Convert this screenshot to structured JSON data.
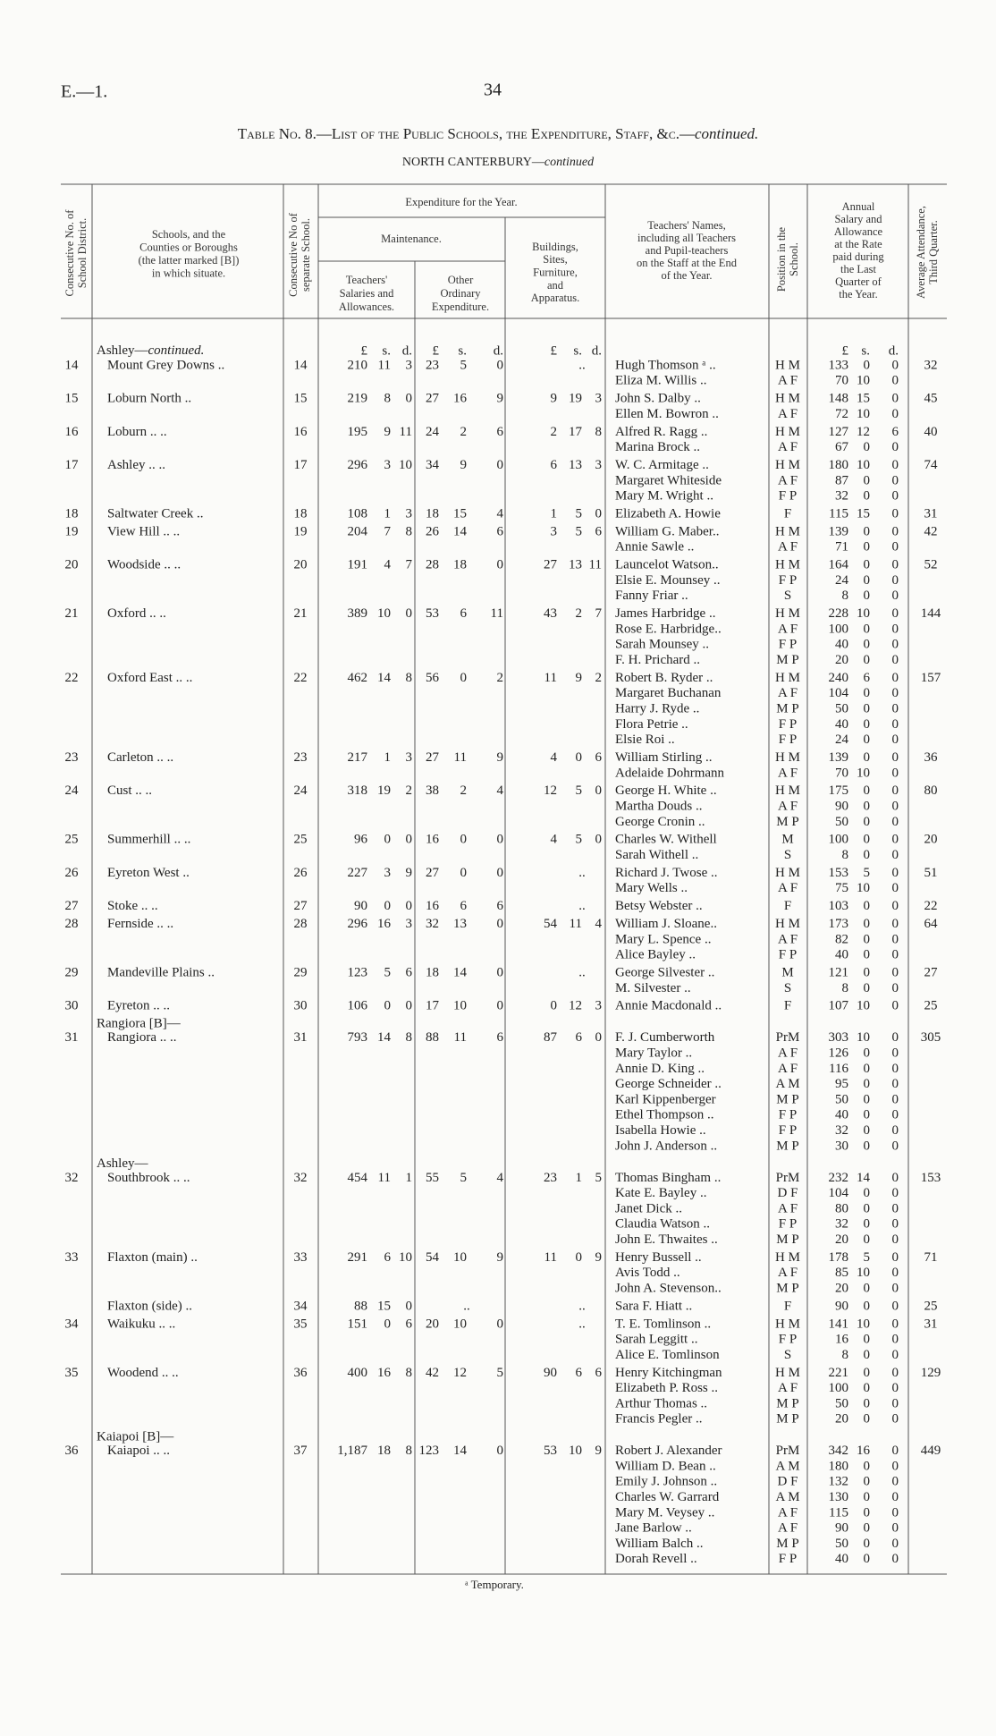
{
  "header": {
    "code": "E.—1.",
    "page": "34",
    "title": "Table No. 8.—List of the Public Schools, the Expenditure, Staff, &c.—",
    "title_italic": "continued.",
    "subtitle": "NORTH CANTERBURY—",
    "subtitle_italic": "continued"
  },
  "columns": {
    "district": [
      "Consecutive No. of",
      "School District."
    ],
    "school": [
      "Schools, and the",
      "Counties or Boroughs",
      "(the latter marked [B])",
      "in which situate."
    ],
    "school_no": [
      "Consecutive No of",
      "separate School."
    ],
    "expenditure": "Expenditure for the Year.",
    "maintenance": "Maintenance.",
    "salaries": [
      "Teachers'",
      "Salaries and",
      "Allowances."
    ],
    "other": [
      "Other",
      "Ordinary",
      "Expenditure."
    ],
    "buildings": [
      "Buildings,",
      "Sites,",
      "Furniture,",
      "and",
      "Apparatus."
    ],
    "teachers": [
      "Teachers' Names,",
      "including all Teachers",
      "and Pupil-teachers",
      "on the Staff at the End",
      "of the Year."
    ],
    "position": [
      "Position in the",
      "School."
    ],
    "salary": [
      "Annual",
      "Salary and",
      "Allowance",
      "at the Rate",
      "paid during",
      "the Last",
      "Quarter of",
      "the Year."
    ],
    "attendance": [
      "Average Attendance,",
      "Third Quarter."
    ]
  },
  "currency": [
    "£",
    "s.",
    "d."
  ],
  "schools": [
    {
      "prefix": "Ashley—",
      "prefix_italic": "continued.",
      "district": "14",
      "name": "Mount Grey Downs ..",
      "no": "14",
      "salaries": [
        "210",
        "11",
        "3"
      ],
      "other": [
        "23",
        "5",
        "0"
      ],
      "buildings": "..",
      "attendance": "32",
      "staff": [
        [
          "Hugh Thomson ᵃ ..",
          "H M",
          "133",
          "0",
          "0"
        ],
        [
          "Eliza M. Willis ..",
          "A F",
          "70",
          "10",
          "0"
        ]
      ]
    },
    {
      "district": "15",
      "name": "Loburn North ..",
      "no": "15",
      "salaries": [
        "219",
        "8",
        "0"
      ],
      "other": [
        "27",
        "16",
        "9"
      ],
      "buildings": [
        "9",
        "19",
        "3"
      ],
      "attendance": "45",
      "staff": [
        [
          "John S. Dalby ..",
          "H M",
          "148",
          "15",
          "0"
        ],
        [
          "Ellen M. Bowron ..",
          "A F",
          "72",
          "10",
          "0"
        ]
      ]
    },
    {
      "district": "16",
      "name": "Loburn .. ..",
      "no": "16",
      "salaries": [
        "195",
        "9",
        "11"
      ],
      "other": [
        "24",
        "2",
        "6"
      ],
      "buildings": [
        "2",
        "17",
        "8"
      ],
      "attendance": "40",
      "staff": [
        [
          "Alfred R. Ragg ..",
          "H M",
          "127",
          "12",
          "6"
        ],
        [
          "Marina Brock ..",
          "A F",
          "67",
          "0",
          "0"
        ]
      ]
    },
    {
      "district": "17",
      "name": "Ashley .. ..",
      "no": "17",
      "salaries": [
        "296",
        "3",
        "10"
      ],
      "other": [
        "34",
        "9",
        "0"
      ],
      "buildings": [
        "6",
        "13",
        "3"
      ],
      "attendance": "74",
      "staff": [
        [
          "W. C. Armitage ..",
          "H M",
          "180",
          "10",
          "0"
        ],
        [
          "Margaret Whiteside",
          "A F",
          "87",
          "0",
          "0"
        ],
        [
          "Mary M. Wright ..",
          "F P",
          "32",
          "0",
          "0"
        ]
      ]
    },
    {
      "district": "18",
      "name": "Saltwater Creek ..",
      "no": "18",
      "salaries": [
        "108",
        "1",
        "3"
      ],
      "other": [
        "18",
        "15",
        "4"
      ],
      "buildings": [
        "1",
        "5",
        "0"
      ],
      "attendance": "31",
      "staff": [
        [
          "Elizabeth A. Howie",
          "F",
          "115",
          "15",
          "0"
        ]
      ]
    },
    {
      "district": "19",
      "name": "View Hill .. ..",
      "no": "19",
      "salaries": [
        "204",
        "7",
        "8"
      ],
      "other": [
        "26",
        "14",
        "6"
      ],
      "buildings": [
        "3",
        "5",
        "6"
      ],
      "attendance": "42",
      "staff": [
        [
          "William G. Maber..",
          "H M",
          "139",
          "0",
          "0"
        ],
        [
          "Annie Sawle ..",
          "A F",
          "71",
          "0",
          "0"
        ]
      ]
    },
    {
      "district": "20",
      "name": "Woodside .. ..",
      "no": "20",
      "salaries": [
        "191",
        "4",
        "7"
      ],
      "other": [
        "28",
        "18",
        "0"
      ],
      "buildings": [
        "27",
        "13",
        "11"
      ],
      "attendance": "52",
      "staff": [
        [
          "Launcelot Watson..",
          "H M",
          "164",
          "0",
          "0"
        ],
        [
          "Elsie E. Mounsey ..",
          "F P",
          "24",
          "0",
          "0"
        ],
        [
          "Fanny Friar ..",
          "S",
          "8",
          "0",
          "0"
        ]
      ]
    },
    {
      "district": "21",
      "name": "Oxford .. ..",
      "no": "21",
      "salaries": [
        "389",
        "10",
        "0"
      ],
      "other": [
        "53",
        "6",
        "11"
      ],
      "buildings": [
        "43",
        "2",
        "7"
      ],
      "attendance": "144",
      "staff": [
        [
          "James Harbridge ..",
          "H M",
          "228",
          "10",
          "0"
        ],
        [
          "Rose E. Harbridge..",
          "A F",
          "100",
          "0",
          "0"
        ],
        [
          "Sarah Mounsey ..",
          "F P",
          "40",
          "0",
          "0"
        ],
        [
          "F. H. Prichard ..",
          "M P",
          "20",
          "0",
          "0"
        ]
      ]
    },
    {
      "district": "22",
      "name": "Oxford East .. ..",
      "no": "22",
      "salaries": [
        "462",
        "14",
        "8"
      ],
      "other": [
        "56",
        "0",
        "2"
      ],
      "buildings": [
        "11",
        "9",
        "2"
      ],
      "attendance": "157",
      "staff": [
        [
          "Robert B. Ryder ..",
          "H M",
          "240",
          "6",
          "0"
        ],
        [
          "Margaret Buchanan",
          "A F",
          "104",
          "0",
          "0"
        ],
        [
          "Harry J. Ryde ..",
          "M P",
          "50",
          "0",
          "0"
        ],
        [
          "Flora Petrie ..",
          "F P",
          "40",
          "0",
          "0"
        ],
        [
          "Elsie Roi ..",
          "F P",
          "24",
          "0",
          "0"
        ]
      ]
    },
    {
      "district": "23",
      "name": "Carleton .. ..",
      "no": "23",
      "salaries": [
        "217",
        "1",
        "3"
      ],
      "other": [
        "27",
        "11",
        "9"
      ],
      "buildings": [
        "4",
        "0",
        "6"
      ],
      "attendance": "36",
      "staff": [
        [
          "William Stirling ..",
          "H M",
          "139",
          "0",
          "0"
        ],
        [
          "Adelaide Dohrmann",
          "A F",
          "70",
          "10",
          "0"
        ]
      ]
    },
    {
      "district": "24",
      "name": "Cust .. ..",
      "no": "24",
      "salaries": [
        "318",
        "19",
        "2"
      ],
      "other": [
        "38",
        "2",
        "4"
      ],
      "buildings": [
        "12",
        "5",
        "0"
      ],
      "attendance": "80",
      "staff": [
        [
          "George H. White ..",
          "H M",
          "175",
          "0",
          "0"
        ],
        [
          "Martha Douds ..",
          "A F",
          "90",
          "0",
          "0"
        ],
        [
          "George Cronin ..",
          "M P",
          "50",
          "0",
          "0"
        ]
      ]
    },
    {
      "district": "25",
      "name": "Summerhill .. ..",
      "no": "25",
      "salaries": [
        "96",
        "0",
        "0"
      ],
      "other": [
        "16",
        "0",
        "0"
      ],
      "buildings": [
        "4",
        "5",
        "0"
      ],
      "attendance": "20",
      "staff": [
        [
          "Charles W. Withell",
          "M",
          "100",
          "0",
          "0"
        ],
        [
          "Sarah Withell ..",
          "S",
          "8",
          "0",
          "0"
        ]
      ]
    },
    {
      "district": "26",
      "name": "Eyreton West ..",
      "no": "26",
      "salaries": [
        "227",
        "3",
        "9"
      ],
      "other": [
        "27",
        "0",
        "0"
      ],
      "buildings": "..",
      "attendance": "51",
      "staff": [
        [
          "Richard J. Twose ..",
          "H M",
          "153",
          "5",
          "0"
        ],
        [
          "Mary Wells ..",
          "A F",
          "75",
          "10",
          "0"
        ]
      ]
    },
    {
      "district": "27",
      "name": "Stoke .. ..",
      "no": "27",
      "salaries": [
        "90",
        "0",
        "0"
      ],
      "other": [
        "16",
        "6",
        "6"
      ],
      "buildings": "..",
      "attendance": "22",
      "staff": [
        [
          "Betsy Webster ..",
          "F",
          "103",
          "0",
          "0"
        ]
      ]
    },
    {
      "district": "28",
      "name": "Fernside .. ..",
      "no": "28",
      "salaries": [
        "296",
        "16",
        "3"
      ],
      "other": [
        "32",
        "13",
        "0"
      ],
      "buildings": [
        "54",
        "11",
        "4"
      ],
      "attendance": "64",
      "staff": [
        [
          "William J. Sloane..",
          "H M",
          "173",
          "0",
          "0"
        ],
        [
          "Mary L. Spence ..",
          "A F",
          "82",
          "0",
          "0"
        ],
        [
          "Alice Bayley ..",
          "F P",
          "40",
          "0",
          "0"
        ]
      ]
    },
    {
      "district": "29",
      "name": "Mandeville Plains ..",
      "no": "29",
      "salaries": [
        "123",
        "5",
        "6"
      ],
      "other": [
        "18",
        "14",
        "0"
      ],
      "buildings": "..",
      "attendance": "27",
      "staff": [
        [
          "George Silvester ..",
          "M",
          "121",
          "0",
          "0"
        ],
        [
          "M. Silvester ..",
          "S",
          "8",
          "0",
          "0"
        ]
      ]
    },
    {
      "district": "30",
      "name": "Eyreton .. ..",
      "no": "30",
      "salaries": [
        "106",
        "0",
        "0"
      ],
      "other": [
        "17",
        "10",
        "0"
      ],
      "buildings": [
        "0",
        "12",
        "3"
      ],
      "attendance": "25",
      "staff": [
        [
          "Annie Macdonald ..",
          "F",
          "107",
          "10",
          "0"
        ]
      ]
    },
    {
      "prefix": "Rangiora [B]—",
      "district": "31",
      "name": "Rangiora .. ..",
      "no": "31",
      "salaries": [
        "793",
        "14",
        "8"
      ],
      "other": [
        "88",
        "11",
        "6"
      ],
      "buildings": [
        "87",
        "6",
        "0"
      ],
      "attendance": "305",
      "staff": [
        [
          "F. J. Cumberworth",
          "PrM",
          "303",
          "10",
          "0"
        ],
        [
          "Mary Taylor ..",
          "A F",
          "126",
          "0",
          "0"
        ],
        [
          "Annie D. King ..",
          "A F",
          "116",
          "0",
          "0"
        ],
        [
          "George Schneider ..",
          "A M",
          "95",
          "0",
          "0"
        ],
        [
          "Karl Kippenberger",
          "M P",
          "50",
          "0",
          "0"
        ],
        [
          "Ethel Thompson ..",
          "F P",
          "40",
          "0",
          "0"
        ],
        [
          "Isabella Howie ..",
          "F P",
          "32",
          "0",
          "0"
        ],
        [
          "John J. Anderson ..",
          "M P",
          "30",
          "0",
          "0"
        ]
      ]
    },
    {
      "prefix": "Ashley—",
      "district": "32",
      "name": "Southbrook .. ..",
      "no": "32",
      "salaries": [
        "454",
        "11",
        "1"
      ],
      "other": [
        "55",
        "5",
        "4"
      ],
      "buildings": [
        "23",
        "1",
        "5"
      ],
      "attendance": "153",
      "staff": [
        [
          "Thomas Bingham ..",
          "PrM",
          "232",
          "14",
          "0"
        ],
        [
          "Kate E. Bayley ..",
          "D F",
          "104",
          "0",
          "0"
        ],
        [
          "Janet Dick ..",
          "A F",
          "80",
          "0",
          "0"
        ],
        [
          "Claudia Watson ..",
          "F P",
          "32",
          "0",
          "0"
        ],
        [
          "John E. Thwaites ..",
          "M P",
          "20",
          "0",
          "0"
        ]
      ]
    },
    {
      "district": "33",
      "name": "Flaxton (main) ..",
      "no": "33",
      "salaries": [
        "291",
        "6",
        "10"
      ],
      "other": [
        "54",
        "10",
        "9"
      ],
      "buildings": [
        "11",
        "0",
        "9"
      ],
      "attendance": "71",
      "staff": [
        [
          "Henry Bussell ..",
          "H M",
          "178",
          "5",
          "0"
        ],
        [
          "Avis Todd ..",
          "A F",
          "85",
          "10",
          "0"
        ],
        [
          "John A. Stevenson..",
          "M P",
          "20",
          "0",
          "0"
        ]
      ]
    },
    {
      "name": "Flaxton (side) ..",
      "no": "34",
      "salaries": [
        "88",
        "15",
        "0"
      ],
      "other": "..",
      "buildings": "..",
      "attendance": "25",
      "staff": [
        [
          "Sara F. Hiatt ..",
          "F",
          "90",
          "0",
          "0"
        ]
      ]
    },
    {
      "district": "34",
      "name": "Waikuku .. ..",
      "no": "35",
      "salaries": [
        "151",
        "0",
        "6"
      ],
      "other": [
        "20",
        "10",
        "0"
      ],
      "buildings": "..",
      "attendance": "31",
      "staff": [
        [
          "T. E. Tomlinson ..",
          "H M",
          "141",
          "10",
          "0"
        ],
        [
          "Sarah Leggitt ..",
          "F P",
          "16",
          "0",
          "0"
        ],
        [
          "Alice E. Tomlinson",
          "S",
          "8",
          "0",
          "0"
        ]
      ]
    },
    {
      "district": "35",
      "name": "Woodend .. ..",
      "no": "36",
      "salaries": [
        "400",
        "16",
        "8"
      ],
      "other": [
        "42",
        "12",
        "5"
      ],
      "buildings": [
        "90",
        "6",
        "6"
      ],
      "attendance": "129",
      "staff": [
        [
          "Henry Kitchingman",
          "H M",
          "221",
          "0",
          "0"
        ],
        [
          "Elizabeth P. Ross ..",
          "A F",
          "100",
          "0",
          "0"
        ],
        [
          "Arthur Thomas ..",
          "M P",
          "50",
          "0",
          "0"
        ],
        [
          "Francis Pegler ..",
          "M P",
          "20",
          "0",
          "0"
        ]
      ]
    },
    {
      "prefix": "Kaiapoi [B]—",
      "district": "36",
      "name": "Kaiapoi .. ..",
      "no": "37",
      "salaries": [
        "1,187",
        "18",
        "8"
      ],
      "other": [
        "123",
        "14",
        "0"
      ],
      "buildings": [
        "53",
        "10",
        "9"
      ],
      "attendance": "449",
      "staff": [
        [
          "Robert J. Alexander",
          "PrM",
          "342",
          "16",
          "0"
        ],
        [
          "William D. Bean ..",
          "A M",
          "180",
          "0",
          "0"
        ],
        [
          "Emily J. Johnson ..",
          "D F",
          "132",
          "0",
          "0"
        ],
        [
          "Charles W. Garrard",
          "A M",
          "130",
          "0",
          "0"
        ],
        [
          "Mary M. Veysey ..",
          "A F",
          "115",
          "0",
          "0"
        ],
        [
          "Jane Barlow ..",
          "A F",
          "90",
          "0",
          "0"
        ],
        [
          "William Balch ..",
          "M P",
          "50",
          "0",
          "0"
        ],
        [
          "Dorah Revell ..",
          "F P",
          "40",
          "0",
          "0"
        ]
      ]
    }
  ],
  "footnote": "ᵃ Temporary."
}
